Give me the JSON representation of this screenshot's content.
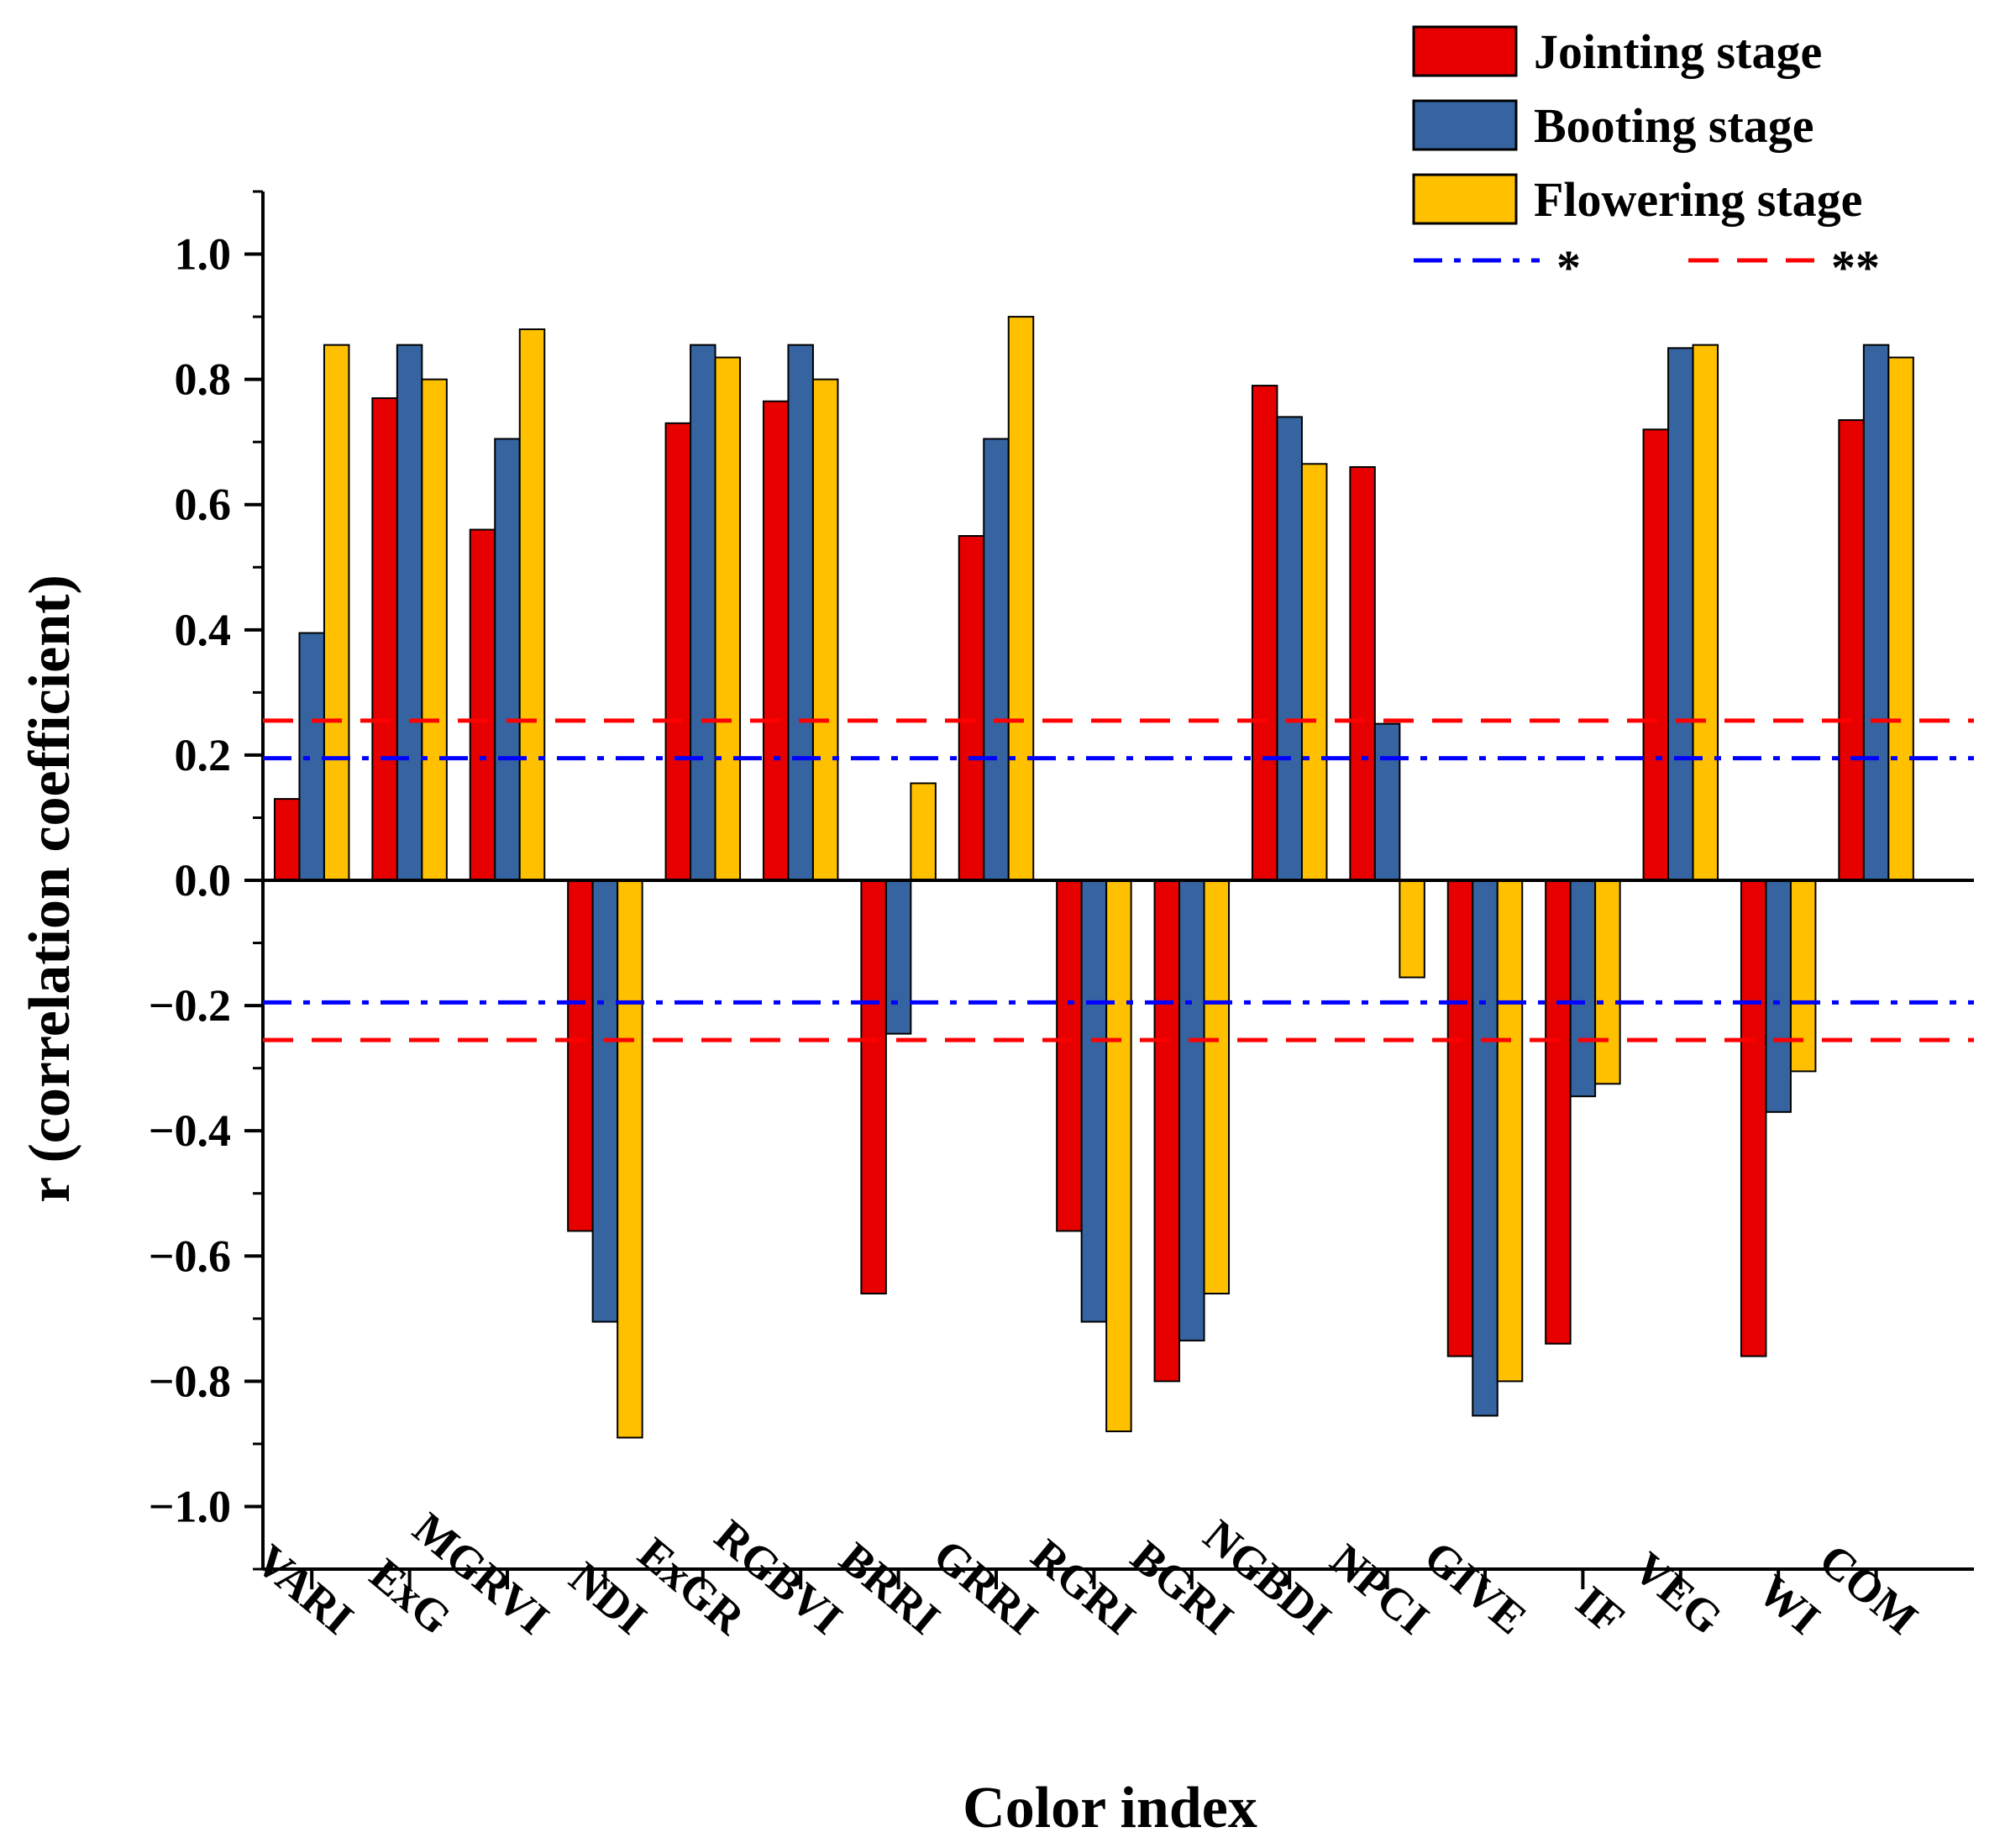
{
  "chart_data": {
    "type": "bar",
    "title": "",
    "xlabel": "Color index",
    "ylabel": "r (correlation coefficient)",
    "ylim": [
      -1.1,
      1.1
    ],
    "yticks": [
      1.0,
      0.8,
      0.6,
      0.4,
      0.2,
      0.0,
      -0.2,
      -0.4,
      -0.6,
      -0.8,
      -1.0
    ],
    "ytick_labels": [
      "1.0",
      "0.8",
      "0.6",
      "0.4",
      "0.2",
      "0.0",
      "−0.2",
      "−0.4",
      "−0.6",
      "−0.8",
      "−1.0"
    ],
    "categories": [
      "VARI",
      "ExG",
      "MGRVI",
      "NDI",
      "ExGR",
      "RGBVI",
      "BRRI",
      "GRRI",
      "RGRI",
      "BGRI",
      "NGBDI",
      "NPCI",
      "GIVE",
      "IF",
      "VEG",
      "WI",
      "COM"
    ],
    "series": [
      {
        "name": "Jointing stage",
        "color": "#e60000",
        "values": [
          0.13,
          0.77,
          0.56,
          -0.56,
          0.73,
          0.765,
          -0.66,
          0.55,
          -0.56,
          -0.8,
          0.79,
          0.66,
          -0.76,
          -0.74,
          0.72,
          -0.76,
          0.735
        ]
      },
      {
        "name": "Booting stage",
        "color": "#3564a0",
        "values": [
          0.395,
          0.855,
          0.705,
          -0.705,
          0.855,
          0.855,
          -0.245,
          0.705,
          -0.705,
          -0.735,
          0.74,
          0.25,
          -0.855,
          -0.345,
          0.85,
          -0.37,
          0.855
        ]
      },
      {
        "name": "Flowering stage",
        "color": "#ffc000",
        "values": [
          0.855,
          0.8,
          0.88,
          -0.89,
          0.835,
          0.8,
          0.155,
          0.9,
          -0.88,
          -0.66,
          0.665,
          -0.155,
          -0.8,
          -0.325,
          0.855,
          -0.305,
          0.835
        ]
      }
    ],
    "reference_lines": [
      {
        "name": "*",
        "color": "#0000ff",
        "style": "dash-dot",
        "values": [
          0.195,
          -0.195
        ]
      },
      {
        "name": "**",
        "color": "#ff0000",
        "style": "dashed",
        "values": [
          0.255,
          -0.255
        ]
      }
    ],
    "legend_position": "top-right",
    "grid": false
  }
}
